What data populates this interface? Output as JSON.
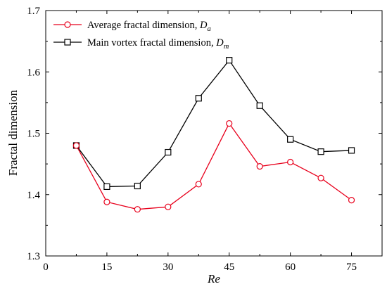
{
  "chart_data": {
    "type": "line",
    "xlabel": "Re",
    "ylabel": "Fractal dimension",
    "xlim": [
      0,
      82.5
    ],
    "ylim": [
      1.3,
      1.7
    ],
    "xticks": [
      0,
      15,
      30,
      45,
      60,
      75
    ],
    "xtick_labels": [
      "0",
      "15",
      "30",
      "45",
      "60",
      "75"
    ],
    "yticks": [
      1.3,
      1.4,
      1.5,
      1.6,
      1.7
    ],
    "ytick_labels": [
      "1.3",
      "1.4",
      "1.5",
      "1.6",
      "1.7"
    ],
    "grid": false,
    "legend_position": "top-left",
    "x": [
      7.5,
      15,
      22.5,
      30,
      37.5,
      45,
      52.5,
      60,
      67.5,
      75
    ],
    "series": [
      {
        "legend_text": "Average fractal dimension, ",
        "legend_symbol": "D",
        "legend_subscript": "a",
        "marker": "circle",
        "color": "#e8001c",
        "values": [
          1.48,
          1.388,
          1.376,
          1.38,
          1.417,
          1.516,
          1.446,
          1.453,
          1.427,
          1.391
        ]
      },
      {
        "legend_text": "Main vortex fractal dimension, ",
        "legend_symbol": "D",
        "legend_subscript": "m",
        "marker": "square",
        "color": "#000000",
        "values": [
          1.48,
          1.413,
          1.414,
          1.469,
          1.557,
          1.619,
          1.545,
          1.49,
          1.47,
          1.472
        ]
      }
    ]
  }
}
